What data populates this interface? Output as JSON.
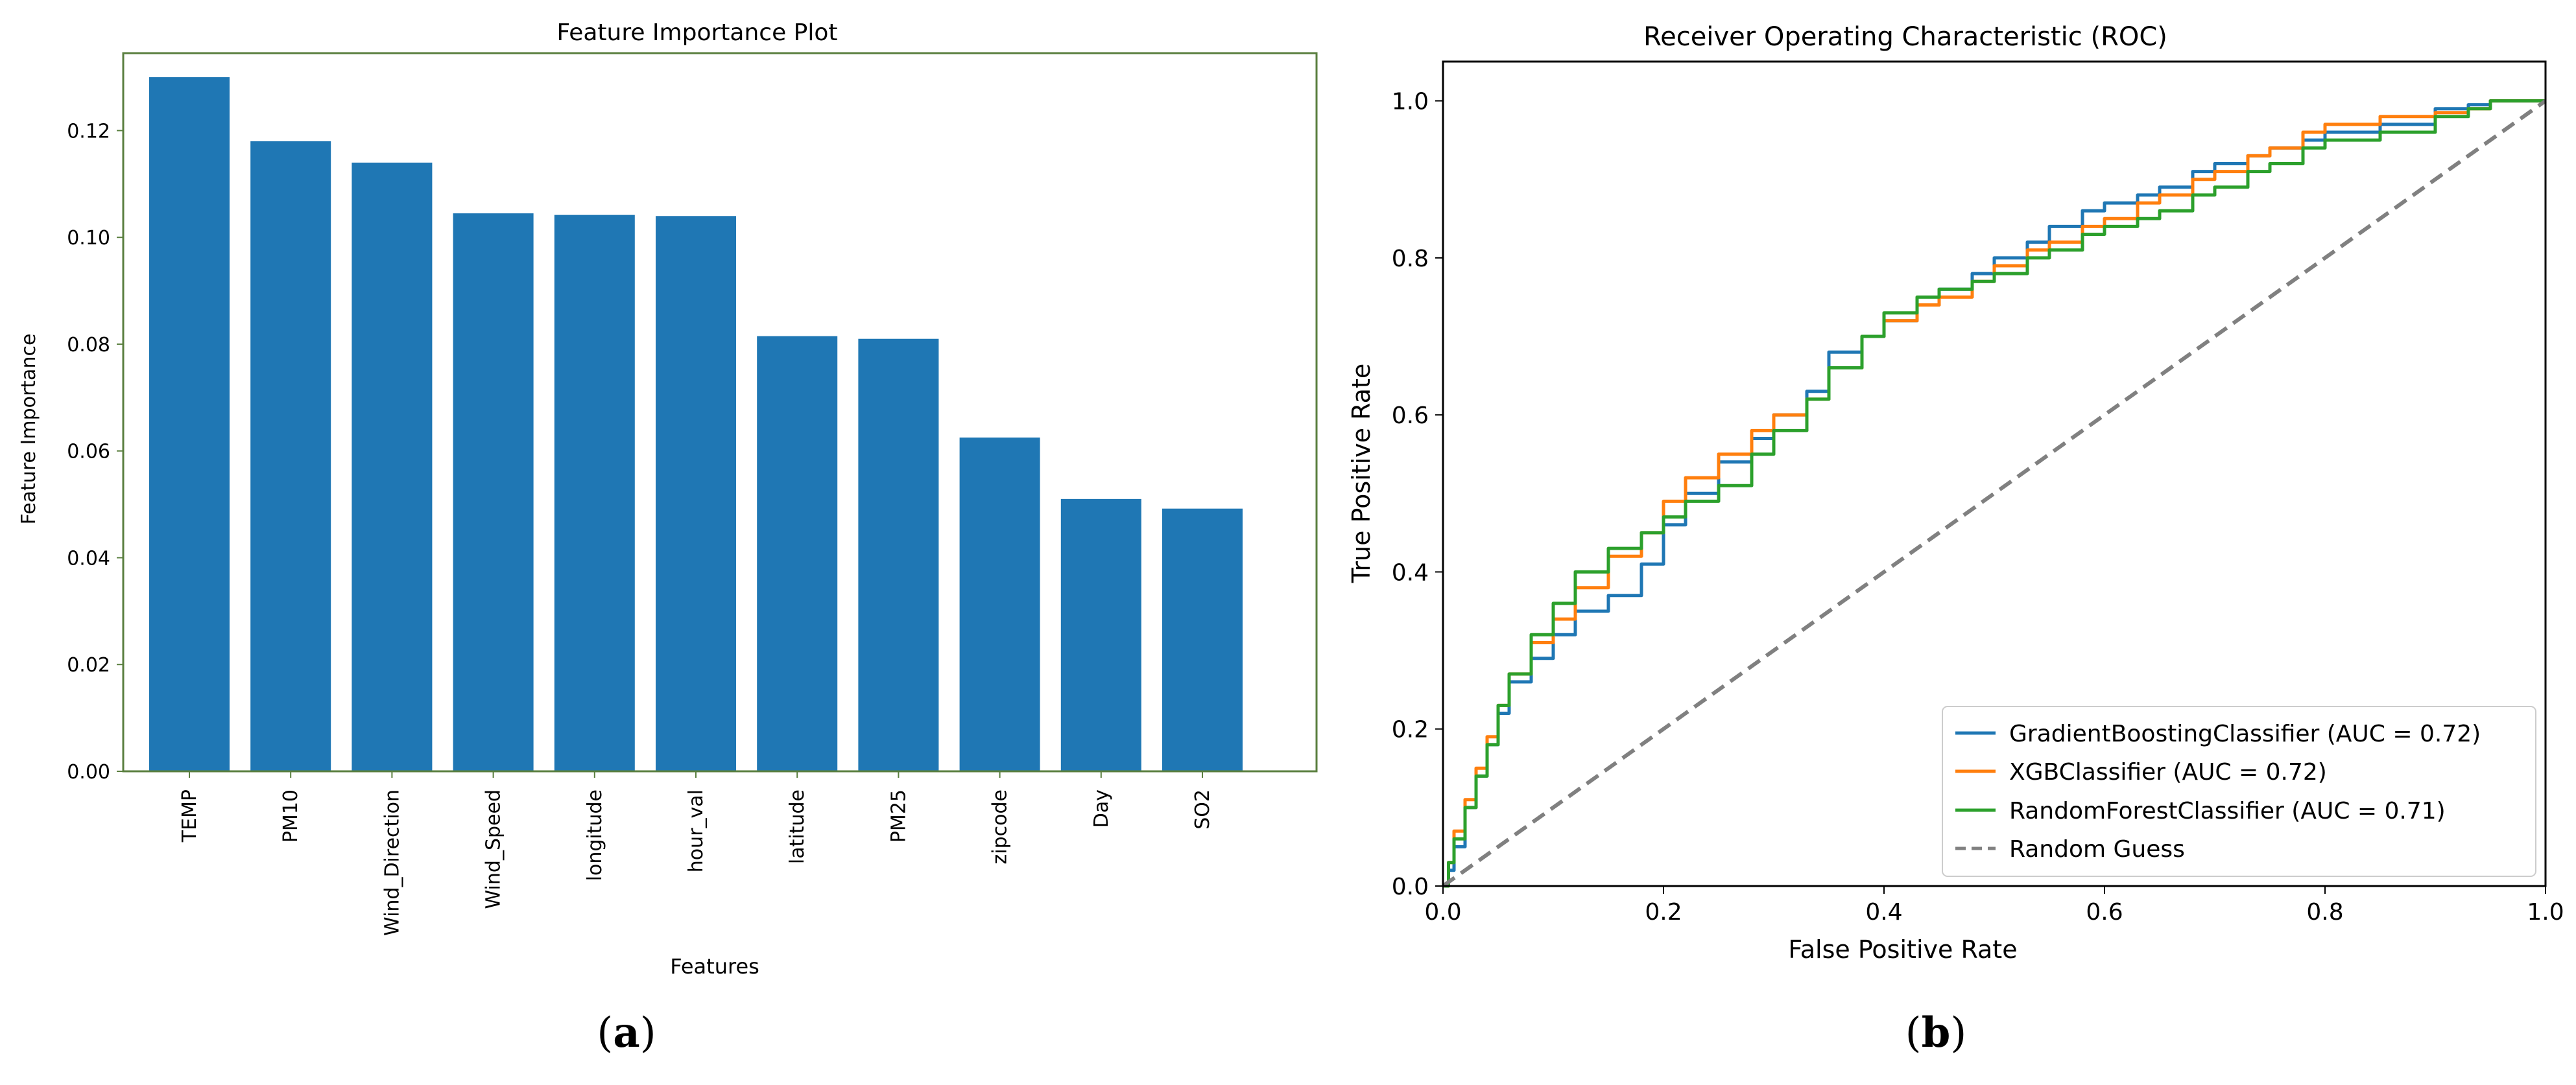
{
  "chart_data": [
    {
      "id": "a",
      "type": "bar",
      "title": "Feature Importance Plot",
      "xlabel": "Features",
      "ylabel": "Feature Importance",
      "categories": [
        "TEMP",
        "PM10",
        "Wind_Direction",
        "Wind_Speed",
        "longitude",
        "hour_val",
        "latitude",
        "PM25",
        "zipcode",
        "Day",
        "SO2"
      ],
      "values": [
        0.13,
        0.118,
        0.114,
        0.1045,
        0.1042,
        0.104,
        0.0815,
        0.081,
        0.0625,
        0.051,
        0.0492
      ],
      "ylim": [
        0,
        0.1345
      ],
      "yticks": [
        0.0,
        0.02,
        0.04,
        0.06,
        0.08,
        0.1,
        0.12
      ],
      "ytick_labels": [
        "0.00",
        "0.02",
        "0.04",
        "0.06",
        "0.08",
        "0.10",
        "0.12"
      ],
      "bar_color": "#1f77b4",
      "grid": false
    },
    {
      "id": "b",
      "type": "line",
      "title": "Receiver Operating Characteristic (ROC)",
      "xlabel": "False Positive Rate",
      "ylabel": "True Positive Rate",
      "xlim": [
        0,
        1
      ],
      "ylim": [
        0,
        1.05
      ],
      "xticks": [
        0.0,
        0.2,
        0.4,
        0.6,
        0.8,
        1.0
      ],
      "xtick_labels": [
        "0.0",
        "0.2",
        "0.4",
        "0.6",
        "0.8",
        "1.0"
      ],
      "yticks": [
        0.0,
        0.2,
        0.4,
        0.6,
        0.8,
        1.0
      ],
      "ytick_labels": [
        "0.0",
        "0.2",
        "0.4",
        "0.6",
        "0.8",
        "1.0"
      ],
      "legend_position": "lower-right",
      "grid": false,
      "series": [
        {
          "name": "GradientBoostingClassifier (AUC = 0.72)",
          "color": "#1f77b4",
          "dash": "solid",
          "x": [
            0,
            0.005,
            0.01,
            0.02,
            0.03,
            0.04,
            0.05,
            0.06,
            0.08,
            0.1,
            0.12,
            0.15,
            0.18,
            0.2,
            0.22,
            0.25,
            0.28,
            0.3,
            0.33,
            0.35,
            0.38,
            0.4,
            0.43,
            0.45,
            0.48,
            0.5,
            0.53,
            0.55,
            0.58,
            0.6,
            0.63,
            0.65,
            0.68,
            0.7,
            0.73,
            0.75,
            0.78,
            0.8,
            0.85,
            0.9,
            0.93,
            0.95,
            1.0
          ],
          "y": [
            0,
            0.02,
            0.05,
            0.1,
            0.14,
            0.18,
            0.22,
            0.26,
            0.29,
            0.32,
            0.35,
            0.37,
            0.41,
            0.46,
            0.5,
            0.54,
            0.57,
            0.6,
            0.63,
            0.68,
            0.7,
            0.72,
            0.74,
            0.76,
            0.78,
            0.8,
            0.82,
            0.84,
            0.86,
            0.87,
            0.88,
            0.89,
            0.91,
            0.92,
            0.93,
            0.94,
            0.95,
            0.96,
            0.97,
            0.99,
            0.995,
            1.0,
            1.0
          ]
        },
        {
          "name": "XGBClassifier (AUC = 0.72)",
          "color": "#ff7f0e",
          "dash": "solid",
          "x": [
            0,
            0.005,
            0.01,
            0.02,
            0.03,
            0.04,
            0.05,
            0.06,
            0.08,
            0.1,
            0.12,
            0.15,
            0.18,
            0.2,
            0.22,
            0.25,
            0.28,
            0.3,
            0.33,
            0.35,
            0.38,
            0.4,
            0.43,
            0.45,
            0.48,
            0.5,
            0.53,
            0.55,
            0.58,
            0.6,
            0.63,
            0.65,
            0.68,
            0.7,
            0.73,
            0.75,
            0.78,
            0.8,
            0.85,
            0.9,
            0.93,
            0.95,
            1.0
          ],
          "y": [
            0,
            0.03,
            0.07,
            0.11,
            0.15,
            0.19,
            0.23,
            0.27,
            0.31,
            0.34,
            0.38,
            0.42,
            0.45,
            0.49,
            0.52,
            0.55,
            0.58,
            0.6,
            0.62,
            0.66,
            0.7,
            0.72,
            0.74,
            0.75,
            0.77,
            0.79,
            0.81,
            0.82,
            0.84,
            0.85,
            0.87,
            0.88,
            0.9,
            0.91,
            0.93,
            0.94,
            0.96,
            0.97,
            0.98,
            0.985,
            0.99,
            1.0,
            1.0
          ]
        },
        {
          "name": "RandomForestClassifier (AUC = 0.71)",
          "color": "#2ca02c",
          "dash": "solid",
          "x": [
            0,
            0.005,
            0.01,
            0.02,
            0.03,
            0.04,
            0.05,
            0.06,
            0.08,
            0.1,
            0.12,
            0.15,
            0.18,
            0.2,
            0.22,
            0.25,
            0.28,
            0.3,
            0.33,
            0.35,
            0.38,
            0.4,
            0.43,
            0.45,
            0.48,
            0.5,
            0.53,
            0.55,
            0.58,
            0.6,
            0.63,
            0.65,
            0.68,
            0.7,
            0.73,
            0.75,
            0.78,
            0.8,
            0.85,
            0.9,
            0.93,
            0.95,
            1.0
          ],
          "y": [
            0,
            0.03,
            0.06,
            0.1,
            0.14,
            0.18,
            0.23,
            0.27,
            0.32,
            0.36,
            0.4,
            0.43,
            0.45,
            0.47,
            0.49,
            0.51,
            0.55,
            0.58,
            0.62,
            0.66,
            0.7,
            0.73,
            0.75,
            0.76,
            0.77,
            0.78,
            0.8,
            0.81,
            0.83,
            0.84,
            0.85,
            0.86,
            0.88,
            0.89,
            0.91,
            0.92,
            0.94,
            0.95,
            0.96,
            0.98,
            0.99,
            1.0,
            1.0
          ]
        },
        {
          "name": "Random Guess",
          "color": "#808080",
          "dash": "dashed",
          "x": [
            0,
            1
          ],
          "y": [
            0,
            1
          ]
        }
      ]
    }
  ],
  "captions": {
    "a_open": "(",
    "a_letter": "a",
    "a_close": ")",
    "b_open": "(",
    "b_letter": "b",
    "b_close": ")"
  }
}
